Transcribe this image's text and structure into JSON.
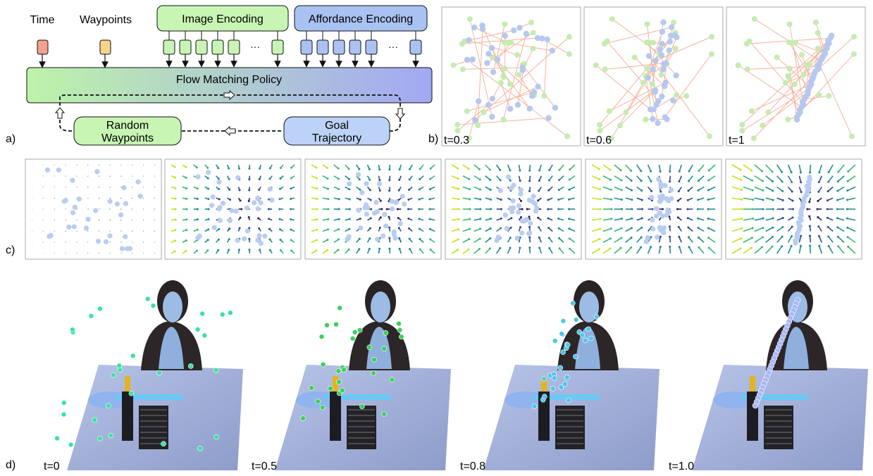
{
  "panel_a": {
    "label": "a)",
    "time_label": "Time",
    "waypoints_label": "Waypoints",
    "image_encoding_label": "Image Encoding",
    "affordance_encoding_label": "Affordance Encoding",
    "ellipsis": "···",
    "policy_label": "Flow Matching Policy",
    "random_waypoints_line1": "Random",
    "random_waypoints_line2": "Waypoints",
    "goal_trajectory_line1": "Goal",
    "goal_trajectory_line2": "Trajectory",
    "colors": {
      "time_token": "#f4a08e",
      "waypoint_token": "#f8d48a",
      "image_token": "#c8f5b4",
      "affordance_token": "#a9c2f2",
      "policy_left": "#bdf3a9",
      "policy_right": "#a3a8f4",
      "random_box": "#c8f5b4",
      "goal_box": "#bcd2f6"
    }
  },
  "panel_b": {
    "label": "b)",
    "subplots": [
      "t=0.3",
      "t=0.6",
      "t=1"
    ],
    "colors": {
      "source_points": "#c5ecb0",
      "target_points": "#b6c8ef",
      "links": "#f5b39f"
    }
  },
  "panel_c": {
    "label": "c)",
    "frame_count": 6,
    "colors": {
      "points": "#b9cdf2",
      "arrow_scale": [
        "#2c1f5e",
        "#2f4d8d",
        "#238a8d",
        "#3bb776",
        "#c8e020"
      ]
    }
  },
  "panel_d": {
    "label": "d)",
    "frames": [
      "t=0",
      "t=0.5",
      "t=0.8",
      "t=1.0"
    ],
    "colors": {
      "waypoints_start": "#38e3a2",
      "waypoints_mid": "#3ccf5c",
      "waypoints_late": "#4fc6ea",
      "waypoints_final": "#a8b7f5"
    }
  }
}
